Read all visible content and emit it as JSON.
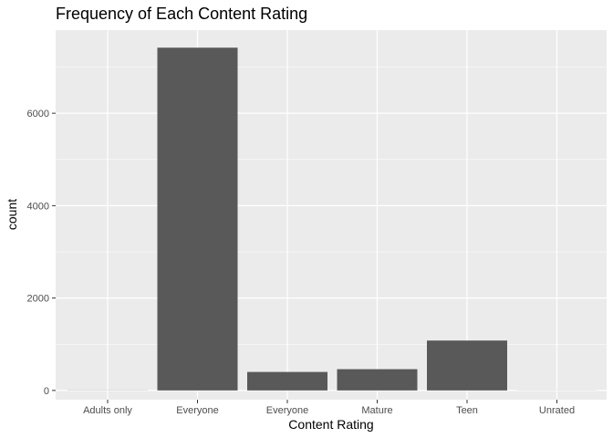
{
  "chart_data": {
    "type": "bar",
    "title": "Frequency of Each Content Rating",
    "xlabel": "Content Rating",
    "ylabel": "count",
    "categories": [
      "Adults only",
      "Everyone",
      "Everyone",
      "Mature",
      "Teen",
      "Unrated"
    ],
    "values": [
      3,
      7420,
      400,
      460,
      1080,
      2
    ],
    "ylim": [
      -200,
      7800
    ],
    "yticks": [
      0,
      2000,
      4000,
      6000
    ],
    "ytick_labels": [
      "0",
      "2000",
      "4000",
      "6000"
    ],
    "grid": true,
    "legend": "none",
    "colors": {
      "bar": "#595959",
      "panel": "#ebebeb",
      "grid_major": "#ffffff",
      "tick_text": "#4d4d4d",
      "tick_mark": "#333333"
    }
  }
}
